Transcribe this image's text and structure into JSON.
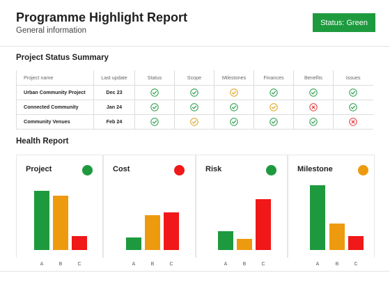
{
  "header": {
    "title": "Programme Highlight Report",
    "subtitle": "General information",
    "status_button": "Status: Green"
  },
  "status_summary": {
    "title": "Project Status Summary",
    "columns": [
      "Project name",
      "Last update",
      "Status",
      "Scope",
      "Milestones",
      "Finances",
      "Benefits",
      "Issues"
    ],
    "rows": [
      {
        "name": "Urban Community Project",
        "date": "Dec 23",
        "marks": [
          "check-green",
          "check-green",
          "check-amber",
          "check-green",
          "check-green",
          "check-green"
        ]
      },
      {
        "name": "Connected Community",
        "date": "Jan 24",
        "marks": [
          "check-green",
          "check-green",
          "check-green",
          "check-amber",
          "cross-red",
          "check-green"
        ]
      },
      {
        "name": "Community Venues",
        "date": "Feb 24",
        "marks": [
          "check-green",
          "check-amber",
          "check-green",
          "check-green",
          "check-green",
          "cross-red"
        ]
      }
    ]
  },
  "colors": {
    "green": "#1e9a3e",
    "amber": "#ee9a0f",
    "red": "#f01818",
    "green_mark": "#229a45",
    "amber_mark": "#e0a11b",
    "red_mark": "#e8353a"
  },
  "health_report": {
    "title": "Health Report"
  },
  "chart_data": [
    {
      "type": "bar",
      "title": "Project",
      "status_color": "#1e9a3e",
      "categories": [
        "A",
        "B",
        "C"
      ],
      "values": [
        85,
        78,
        20
      ],
      "colors": [
        "#1e9a3e",
        "#ee9a0f",
        "#f01818"
      ],
      "ylim": [
        0,
        100
      ]
    },
    {
      "type": "bar",
      "title": "Cost",
      "status_color": "#f01818",
      "categories": [
        "A",
        "B",
        "C"
      ],
      "values": [
        18,
        50,
        54
      ],
      "colors": [
        "#1e9a3e",
        "#ee9a0f",
        "#f01818"
      ],
      "ylim": [
        0,
        100
      ]
    },
    {
      "type": "bar",
      "title": "Risk",
      "status_color": "#1e9a3e",
      "categories": [
        "A",
        "B",
        "C"
      ],
      "values": [
        27,
        16,
        73
      ],
      "colors": [
        "#1e9a3e",
        "#ee9a0f",
        "#f01818"
      ],
      "ylim": [
        0,
        100
      ]
    },
    {
      "type": "bar",
      "title": "Milestone",
      "status_color": "#ee9a0f",
      "categories": [
        "A",
        "B",
        "C"
      ],
      "values": [
        93,
        38,
        20
      ],
      "colors": [
        "#1e9a3e",
        "#ee9a0f",
        "#f01818"
      ],
      "ylim": [
        0,
        100
      ]
    }
  ]
}
